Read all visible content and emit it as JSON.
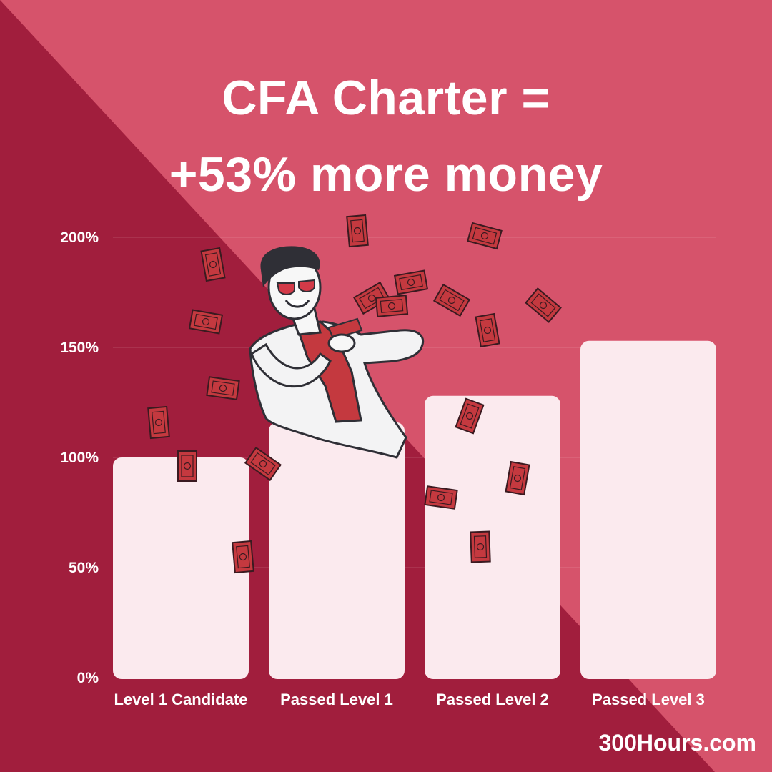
{
  "title": {
    "line1": "CFA Charter =",
    "line2": "+53% more money"
  },
  "brand": "300Hours.com",
  "colors": {
    "dark": "#a11e3d",
    "light": "#d6536b",
    "bar": "#fbeaee",
    "bill": "#c4393f"
  },
  "chart_data": {
    "type": "bar",
    "categories": [
      "Level 1 Candidate",
      "Passed Level 1",
      "Passed Level 2",
      "Passed Level 3"
    ],
    "values": [
      100,
      116,
      128,
      153
    ],
    "ylim": [
      0,
      200
    ],
    "yticks": [
      "0%",
      "50%",
      "100%",
      "150%",
      "200%"
    ],
    "grid": true,
    "title": "CFA Charter = +53% more money"
  }
}
